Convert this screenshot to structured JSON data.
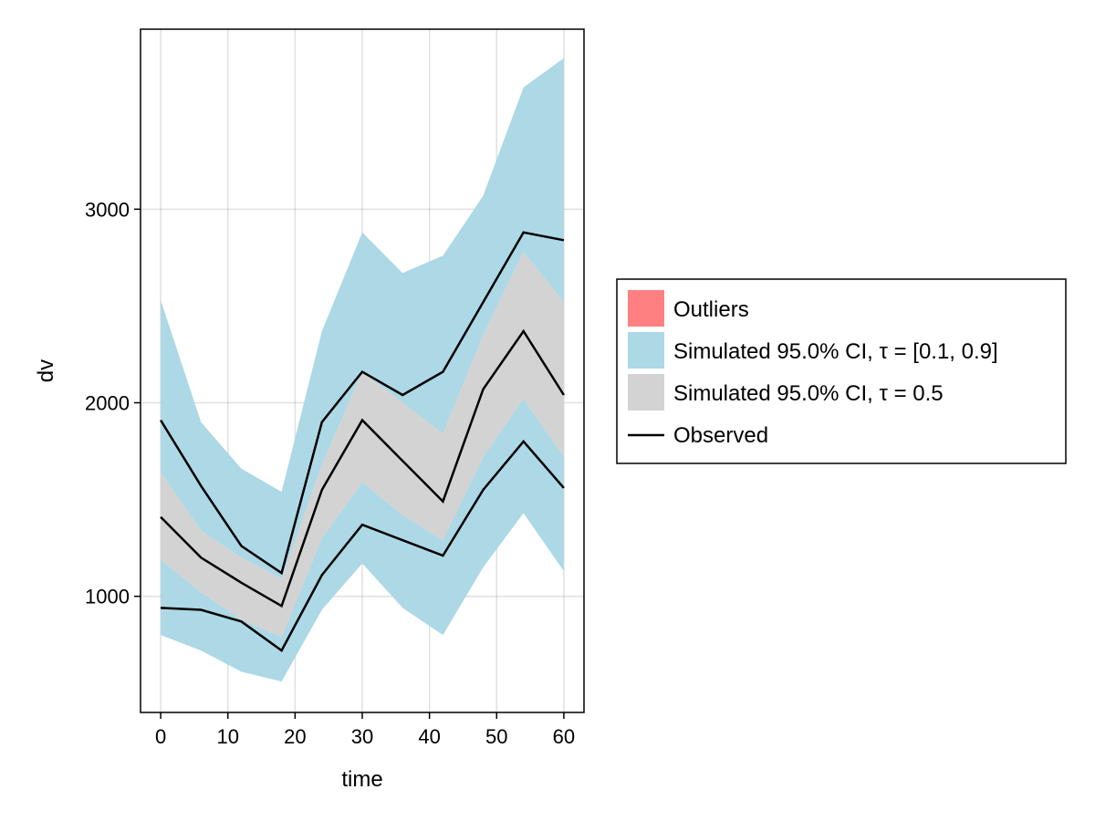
{
  "chart_data": {
    "type": "line",
    "xlabel": "time",
    "ylabel": "dv",
    "xlim": [
      -3,
      63
    ],
    "ylim": [
      400,
      3930
    ],
    "x_ticks": [
      0,
      10,
      20,
      30,
      40,
      50,
      60
    ],
    "y_ticks": [
      1000,
      2000,
      3000
    ],
    "x_tick_labels": [
      "0",
      "10",
      "20",
      "30",
      "40",
      "50",
      "60"
    ],
    "y_tick_labels": [
      "1000",
      "2000",
      "3000"
    ],
    "grid": true,
    "legend_position": "right",
    "x": [
      0,
      6,
      12,
      18,
      24,
      30,
      36,
      42,
      48,
      54,
      60
    ],
    "bands": [
      {
        "name": "Simulated 95.0% CI, τ = [0.1, 0.9]",
        "color": "#add8e6",
        "part": "upper",
        "lower": [
          1640,
          1340,
          1200,
          1090,
          1680,
          2160,
          2000,
          1840,
          2350,
          2780,
          2520
        ],
        "upper": [
          2530,
          1900,
          1660,
          1540,
          2370,
          2880,
          2670,
          2760,
          3070,
          3630,
          3780
        ]
      },
      {
        "name": "Simulated 95.0% CI, τ = [0.1, 0.9]",
        "color": "#add8e6",
        "part": "lower",
        "lower": [
          800,
          720,
          610,
          560,
          930,
          1170,
          940,
          800,
          1150,
          1430,
          1130
        ],
        "upper": [
          1190,
          1020,
          880,
          790,
          1300,
          1590,
          1420,
          1290,
          1720,
          2020,
          1720
        ]
      },
      {
        "name": "Simulated 95.0% CI, τ = 0.5",
        "color": "#d3d3d3",
        "part": "median",
        "lower": [
          1190,
          1020,
          880,
          790,
          1300,
          1590,
          1420,
          1290,
          1720,
          2020,
          1720
        ],
        "upper": [
          1640,
          1340,
          1200,
          1090,
          1680,
          2160,
          2000,
          1840,
          2350,
          2780,
          2520
        ]
      }
    ],
    "series": [
      {
        "name": "Observed",
        "color": "#000000",
        "values": [
          1910,
          1570,
          1260,
          1120,
          1900,
          2160,
          2040,
          2160,
          2520,
          2880,
          2840
        ]
      },
      {
        "name": "Observed",
        "color": "#000000",
        "values": [
          1410,
          1200,
          1070,
          950,
          1550,
          1910,
          1700,
          1490,
          2070,
          2370,
          2040
        ]
      },
      {
        "name": "Observed",
        "color": "#000000",
        "values": [
          940,
          930,
          870,
          720,
          1110,
          1370,
          1290,
          1210,
          1550,
          1800,
          1560
        ]
      }
    ],
    "legend": [
      {
        "label": "Outliers",
        "kind": "patch",
        "color": "#ff8080"
      },
      {
        "label": "Simulated 95.0% CI, τ = [0.1, 0.9]",
        "kind": "patch",
        "color": "#add8e6"
      },
      {
        "label": "Simulated 95.0% CI, τ = 0.5",
        "kind": "patch",
        "color": "#d3d3d3"
      },
      {
        "label": "Observed",
        "kind": "line",
        "color": "#000000"
      }
    ]
  }
}
